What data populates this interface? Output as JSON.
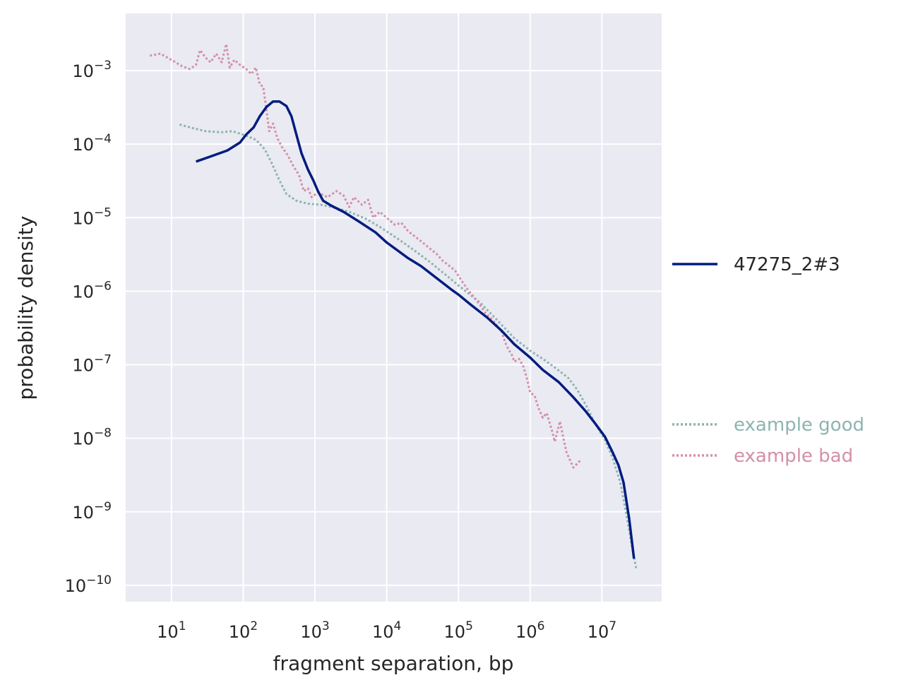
{
  "chart_data": {
    "type": "line",
    "xlabel": "fragment separation, bp",
    "ylabel": "probability density",
    "xscale": "log",
    "yscale": "log",
    "xlim": [
      2.3,
      68000000
    ],
    "ylim": [
      6e-11,
      0.006
    ],
    "grid": true,
    "background": "#eaeaf2",
    "legend_placement": "right",
    "x_ticks": [
      {
        "base": "10",
        "exp": "1",
        "value": 10
      },
      {
        "base": "10",
        "exp": "2",
        "value": 100
      },
      {
        "base": "10",
        "exp": "3",
        "value": 1000
      },
      {
        "base": "10",
        "exp": "4",
        "value": 10000
      },
      {
        "base": "10",
        "exp": "5",
        "value": 100000
      },
      {
        "base": "10",
        "exp": "6",
        "value": 1000000
      },
      {
        "base": "10",
        "exp": "7",
        "value": 10000000
      }
    ],
    "y_ticks": [
      {
        "base": "10",
        "exp": "−3",
        "value": 0.001
      },
      {
        "base": "10",
        "exp": "−4",
        "value": 0.0001
      },
      {
        "base": "10",
        "exp": "−5",
        "value": 1e-05
      },
      {
        "base": "10",
        "exp": "−6",
        "value": 1e-06
      },
      {
        "base": "10",
        "exp": "−7",
        "value": 1e-07
      },
      {
        "base": "10",
        "exp": "−8",
        "value": 1e-08
      },
      {
        "base": "10",
        "exp": "−9",
        "value": 1e-09
      },
      {
        "base": "10",
        "exp": "−10",
        "value": 1e-10
      }
    ],
    "series": [
      {
        "name": "47275_2#3",
        "color": "#001c7f",
        "style": "solid",
        "points": [
          [
            22,
            5.8e-05
          ],
          [
            35,
            6.8e-05
          ],
          [
            60,
            8.2e-05
          ],
          [
            90,
            0.000105
          ],
          [
            110,
            0.000135
          ],
          [
            140,
            0.00017
          ],
          [
            170,
            0.00024
          ],
          [
            210,
            0.00032
          ],
          [
            260,
            0.00038
          ],
          [
            320,
            0.00038
          ],
          [
            400,
            0.00033
          ],
          [
            470,
            0.00024
          ],
          [
            550,
            0.000135
          ],
          [
            650,
            7.5e-05
          ],
          [
            800,
            4.5e-05
          ],
          [
            950,
            3.2e-05
          ],
          [
            1100,
            2.3e-05
          ],
          [
            1300,
            1.7e-05
          ],
          [
            1700,
            1.45e-05
          ],
          [
            2500,
            1.2e-05
          ],
          [
            4000,
            9e-06
          ],
          [
            7000,
            6.3e-06
          ],
          [
            10000,
            4.6e-06
          ],
          [
            20000,
            2.8e-06
          ],
          [
            30000,
            2.2e-06
          ],
          [
            50000,
            1.5e-06
          ],
          [
            80000,
            1.05e-06
          ],
          [
            100000,
            9e-07
          ],
          [
            150000,
            6.5e-07
          ],
          [
            250000,
            4.4e-07
          ],
          [
            400000,
            2.9e-07
          ],
          [
            600000,
            1.9e-07
          ],
          [
            1000000,
            1.25e-07
          ],
          [
            1500000,
            8.5e-08
          ],
          [
            2500000,
            5.8e-08
          ],
          [
            4000000,
            3.6e-08
          ],
          [
            6000000,
            2.3e-08
          ],
          [
            8000000,
            1.6e-08
          ],
          [
            11000000,
            1.05e-08
          ],
          [
            14000000,
            6.5e-09
          ],
          [
            17000000,
            4.3e-09
          ],
          [
            20000000,
            2.5e-09
          ],
          [
            24000000,
            8e-10
          ],
          [
            28000000,
            2.3e-10
          ]
        ]
      },
      {
        "name": "example good",
        "color": "#8db4b0",
        "style": "dotted",
        "points": [
          [
            13,
            0.000185
          ],
          [
            20,
            0.000165
          ],
          [
            30,
            0.00015
          ],
          [
            50,
            0.000145
          ],
          [
            70,
            0.00015
          ],
          [
            100,
            0.000135
          ],
          [
            150,
            0.000115
          ],
          [
            200,
            8.5e-05
          ],
          [
            250,
            5.5e-05
          ],
          [
            320,
            3.2e-05
          ],
          [
            400,
            2.1e-05
          ],
          [
            550,
            1.7e-05
          ],
          [
            800,
            1.55e-05
          ],
          [
            1200,
            1.5e-05
          ],
          [
            2000,
            1.35e-05
          ],
          [
            3000,
            1.2e-05
          ],
          [
            5000,
            9.8e-06
          ],
          [
            8000,
            7.5e-06
          ],
          [
            15000,
            5e-06
          ],
          [
            25000,
            3.5e-06
          ],
          [
            40000,
            2.5e-06
          ],
          [
            70000,
            1.6e-06
          ],
          [
            100000,
            1.2e-06
          ],
          [
            200000,
            7e-07
          ],
          [
            350000,
            4e-07
          ],
          [
            600000,
            2.3e-07
          ],
          [
            1000000,
            1.55e-07
          ],
          [
            1600000,
            1.15e-07
          ],
          [
            2400000,
            8.6e-08
          ],
          [
            3400000,
            6.6e-08
          ],
          [
            4500000,
            4.6e-08
          ],
          [
            6000000,
            2.8e-08
          ],
          [
            8000000,
            1.6e-08
          ],
          [
            11000000,
            9.5e-09
          ],
          [
            14000000,
            5.5e-09
          ],
          [
            18000000,
            2.5e-09
          ],
          [
            22000000,
            9e-10
          ],
          [
            26000000,
            3.5e-10
          ],
          [
            30000000,
            1.7e-10
          ]
        ]
      },
      {
        "name": "example bad",
        "color": "#d48fa9",
        "style": "dotted",
        "points": [
          [
            5,
            0.0016
          ],
          [
            7,
            0.0017
          ],
          [
            10,
            0.0014
          ],
          [
            14,
            0.00115
          ],
          [
            18,
            0.00105
          ],
          [
            22,
            0.0012
          ],
          [
            25,
            0.0019
          ],
          [
            30,
            0.0015
          ],
          [
            35,
            0.0013
          ],
          [
            42,
            0.0017
          ],
          [
            50,
            0.0013
          ],
          [
            58,
            0.0023
          ],
          [
            65,
            0.0011
          ],
          [
            75,
            0.0014
          ],
          [
            90,
            0.0012
          ],
          [
            110,
            0.00105
          ],
          [
            130,
            0.0009
          ],
          [
            150,
            0.0011
          ],
          [
            170,
            0.00065
          ],
          [
            190,
            0.0006
          ],
          [
            210,
            0.0003
          ],
          [
            230,
            0.00015
          ],
          [
            260,
            0.00019
          ],
          [
            300,
            0.00012
          ],
          [
            350,
            9e-05
          ],
          [
            420,
            7e-05
          ],
          [
            500,
            5e-05
          ],
          [
            600,
            3.8e-05
          ],
          [
            700,
            2.3e-05
          ],
          [
            800,
            2.5e-05
          ],
          [
            900,
            1.9e-05
          ],
          [
            1100,
            2.2e-05
          ],
          [
            1500,
            1.9e-05
          ],
          [
            2000,
            2.3e-05
          ],
          [
            2500,
            2e-05
          ],
          [
            3000,
            1.4e-05
          ],
          [
            3500,
            1.9e-05
          ],
          [
            4500,
            1.5e-05
          ],
          [
            5500,
            1.75e-05
          ],
          [
            6500,
            1e-05
          ],
          [
            8000,
            1.2e-05
          ],
          [
            10000,
            1e-05
          ],
          [
            13000,
            8e-06
          ],
          [
            16000,
            8.5e-06
          ],
          [
            20000,
            6.5e-06
          ],
          [
            25000,
            5.5e-06
          ],
          [
            30000,
            4.8e-06
          ],
          [
            40000,
            3.8e-06
          ],
          [
            50000,
            3.2e-06
          ],
          [
            60000,
            2.6e-06
          ],
          [
            75000,
            2.2e-06
          ],
          [
            90000,
            1.9e-06
          ],
          [
            110000,
            1.4e-06
          ],
          [
            140000,
            1e-06
          ],
          [
            170000,
            8e-07
          ],
          [
            200000,
            6.5e-07
          ],
          [
            240000,
            5e-07
          ],
          [
            290000,
            4.2e-07
          ],
          [
            340000,
            3.5e-07
          ],
          [
            400000,
            2.8e-07
          ],
          [
            450000,
            2e-07
          ],
          [
            500000,
            1.6e-07
          ],
          [
            550000,
            1.4e-07
          ],
          [
            600000,
            1.1e-07
          ],
          [
            700000,
            1.2e-07
          ],
          [
            800000,
            9.5e-08
          ],
          [
            900000,
            6.5e-08
          ],
          [
            1000000,
            4.2e-08
          ],
          [
            1150000,
            3.8e-08
          ],
          [
            1300000,
            2.6e-08
          ],
          [
            1500000,
            1.9e-08
          ],
          [
            1700000,
            2.2e-08
          ],
          [
            2000000,
            1.3e-08
          ],
          [
            2200000,
            9e-09
          ],
          [
            2600000,
            1.7e-08
          ],
          [
            2900000,
            1e-08
          ],
          [
            3200000,
            6.5e-09
          ],
          [
            3600000,
            5e-09
          ],
          [
            4000000,
            4e-09
          ],
          [
            4500000,
            4.5e-09
          ],
          [
            5000000,
            5e-09
          ]
        ]
      }
    ]
  },
  "legend": {
    "main": {
      "label": "47275_2#3",
      "color": "#001c7f"
    },
    "examples": [
      {
        "label": "example good",
        "color": "#8db4b0"
      },
      {
        "label": "example bad",
        "color": "#d48fa9"
      }
    ]
  }
}
